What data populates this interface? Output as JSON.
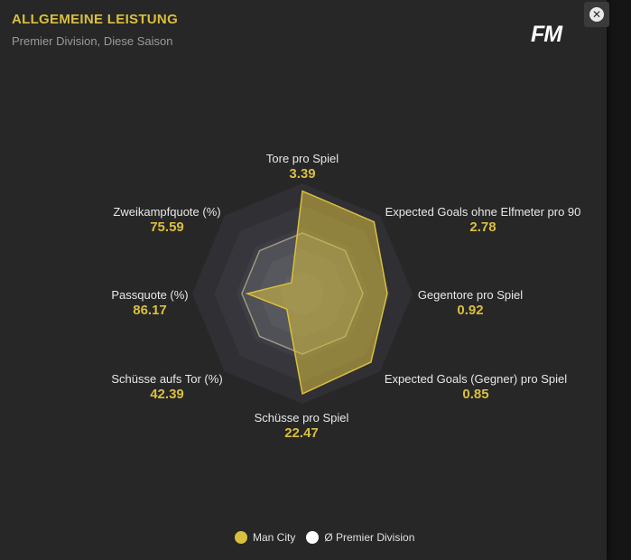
{
  "header": {
    "title": "ALLGEMEINE LEISTUNG",
    "subtitle": "Premier Division, Diese Saison",
    "logo_text": "FM",
    "close_icon": "close-icon"
  },
  "chart_data": {
    "type": "radar",
    "axes": [
      {
        "name": "Tore pro Spiel",
        "value_label": "3.39"
      },
      {
        "name": "Expected Goals ohne Elfmeter pro 90",
        "value_label": "2.78"
      },
      {
        "name": "Gegentore pro Spiel",
        "value_label": "0.92"
      },
      {
        "name": "Expected Goals (Gegner) pro Spiel",
        "value_label": "0.85"
      },
      {
        "name": "Schüsse pro Spiel",
        "value_label": "22.47"
      },
      {
        "name": "Schüsse aufs Tor (%)",
        "value_label": "42.39"
      },
      {
        "name": "Passquote (%)",
        "value_label": "86.17"
      },
      {
        "name": "Zweikampfquote (%)",
        "value_label": "75.59"
      }
    ],
    "series": [
      {
        "name": "Man City",
        "color": "#d9bf3f",
        "normalized": [
          0.93,
          0.92,
          0.77,
          0.88,
          0.91,
          0.2,
          0.5,
          0.14
        ]
      },
      {
        "name": "Ø Premier Division",
        "color": "#ffffff",
        "normalized": [
          0.55,
          0.55,
          0.55,
          0.55,
          0.55,
          0.55,
          0.55,
          0.55
        ]
      }
    ],
    "legend_position": "bottom"
  }
}
